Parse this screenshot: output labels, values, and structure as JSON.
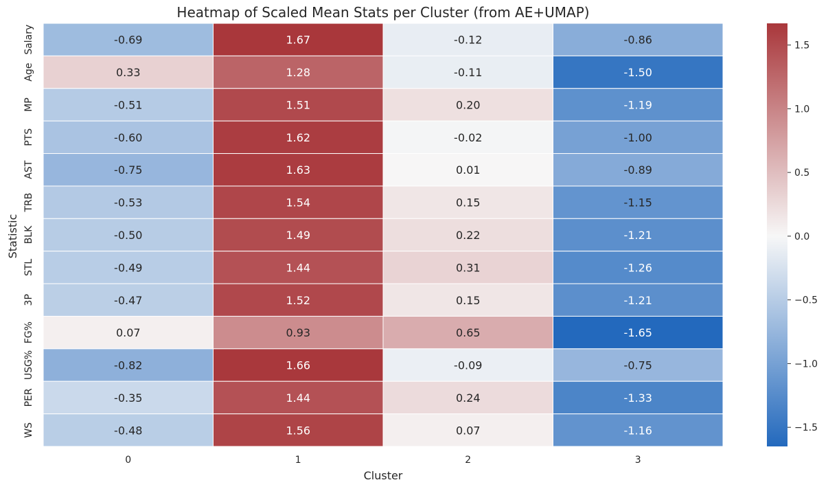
{
  "chart_data": {
    "type": "heatmap",
    "title": "Heatmap of Scaled Mean Stats per Cluster (from AE+UMAP)",
    "xlabel": "Cluster",
    "ylabel": "Statistic",
    "x_categories": [
      "0",
      "1",
      "2",
      "3"
    ],
    "y_categories": [
      "Salary",
      "Age",
      "MP",
      "PTS",
      "AST",
      "TRB",
      "BLK",
      "STL",
      "3P",
      "FG%",
      "USG%",
      "PER",
      "WS"
    ],
    "values": [
      [
        -0.69,
        1.67,
        -0.12,
        -0.86
      ],
      [
        0.33,
        1.28,
        -0.11,
        -1.5
      ],
      [
        -0.51,
        1.51,
        0.2,
        -1.19
      ],
      [
        -0.6,
        1.62,
        -0.02,
        -1.0
      ],
      [
        -0.75,
        1.63,
        0.01,
        -0.89
      ],
      [
        -0.53,
        1.54,
        0.15,
        -1.15
      ],
      [
        -0.5,
        1.49,
        0.22,
        -1.21
      ],
      [
        -0.49,
        1.44,
        0.31,
        -1.26
      ],
      [
        -0.47,
        1.52,
        0.15,
        -1.21
      ],
      [
        0.07,
        0.93,
        0.65,
        -1.65
      ],
      [
        -0.82,
        1.66,
        -0.09,
        -0.75
      ],
      [
        -0.35,
        1.44,
        0.24,
        -1.33
      ],
      [
        -0.48,
        1.56,
        0.07,
        -1.16
      ]
    ],
    "cell_labels": [
      [
        "-0.69",
        "1.67",
        "-0.12",
        "-0.86"
      ],
      [
        "0.33",
        "1.28",
        "-0.11",
        "-1.50"
      ],
      [
        "-0.51",
        "1.51",
        "0.20",
        "-1.19"
      ],
      [
        "-0.60",
        "1.62",
        "-0.02",
        "-1.00"
      ],
      [
        "-0.75",
        "1.63",
        "0.01",
        "-0.89"
      ],
      [
        "-0.53",
        "1.54",
        "0.15",
        "-1.15"
      ],
      [
        "-0.50",
        "1.49",
        "0.22",
        "-1.21"
      ],
      [
        "-0.49",
        "1.44",
        "0.31",
        "-1.26"
      ],
      [
        "-0.47",
        "1.52",
        "0.15",
        "-1.21"
      ],
      [
        "0.07",
        "0.93",
        "0.65",
        "-1.65"
      ],
      [
        "-0.82",
        "1.66",
        "-0.09",
        "-0.75"
      ],
      [
        "-0.35",
        "1.44",
        "0.24",
        "-1.33"
      ],
      [
        "-0.48",
        "1.56",
        "0.07",
        "-1.16"
      ]
    ],
    "colormap": "vlag",
    "color_range": [
      -1.65,
      1.67
    ],
    "colorbar_ticks": [
      1.5,
      1.0,
      0.5,
      0.0,
      -0.5,
      -1.0,
      -1.5
    ],
    "colorbar_tick_labels": [
      "1.5",
      "1.0",
      "0.5",
      "0.0",
      "−0.5",
      "−1.0",
      "−1.5"
    ],
    "colors": {
      "low": "#2369bd",
      "mid": "#f7f7f7",
      "high": "#a9373b",
      "grid": "#ffffff"
    }
  }
}
